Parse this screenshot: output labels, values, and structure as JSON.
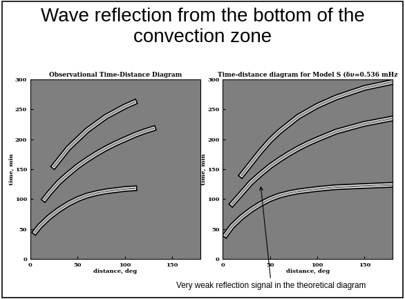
{
  "header": {
    "title": "Wave reflection from the bottom of the convection zone"
  },
  "chart_data": [
    {
      "type": "line",
      "title": "Observational Time-Distance Diagram",
      "x_label": "distance, deg",
      "y_label": "time, min",
      "xlim": [
        0,
        180
      ],
      "xticks": [
        0,
        50,
        100,
        150
      ],
      "ylim": [
        0,
        300
      ],
      "yticks": [
        0,
        50,
        100,
        150,
        200,
        250,
        300
      ],
      "series": [
        {
          "x": [
            5,
            10,
            20,
            30,
            40,
            50,
            60,
            70,
            80,
            90,
            100,
            110
          ],
          "values": [
            45,
            55,
            70,
            82,
            92,
            100,
            106,
            110,
            113,
            115,
            117,
            118
          ]
        },
        {
          "x": [
            15,
            20,
            30,
            40,
            50,
            60,
            70,
            80,
            90,
            100,
            110,
            120,
            130
          ],
          "values": [
            100,
            110,
            128,
            142,
            155,
            166,
            176,
            185,
            193,
            200,
            207,
            213,
            218
          ]
        },
        {
          "x": [
            25,
            40,
            60,
            80,
            100,
            110
          ],
          "values": [
            155,
            185,
            215,
            238,
            255,
            262
          ]
        }
      ]
    },
    {
      "type": "line",
      "title": "Time-distance diagram for Model S (δν=0.536 mHz",
      "x_label": "distance, deg",
      "y_label": "time, min",
      "xlim": [
        0,
        180
      ],
      "xticks": [
        0,
        50,
        100,
        150
      ],
      "ylim": [
        0,
        300
      ],
      "yticks": [
        0,
        50,
        100,
        150,
        200,
        250,
        300
      ],
      "series": [
        {
          "x": [
            3,
            10,
            20,
            30,
            40,
            50,
            60,
            70,
            80,
            90,
            100,
            120,
            150,
            180
          ],
          "values": [
            40,
            55,
            70,
            82,
            92,
            100,
            106,
            110,
            113,
            115,
            117,
            120,
            122,
            124
          ]
        },
        {
          "x": [
            10,
            20,
            30,
            40,
            50,
            60,
            70,
            80,
            90,
            100,
            120,
            150,
            180
          ],
          "values": [
            92,
            110,
            128,
            142,
            155,
            166,
            176,
            185,
            193,
            200,
            213,
            226,
            235
          ]
        },
        {
          "x": [
            20,
            30,
            40,
            50,
            60,
            80,
            100,
            120,
            150,
            180
          ],
          "values": [
            140,
            160,
            180,
            198,
            213,
            238,
            256,
            270,
            286,
            296
          ]
        }
      ],
      "annotations": [
        {
          "text": "Very weak reflection signal in the theoretical diagram",
          "x": 40,
          "y": 125
        }
      ]
    }
  ]
}
